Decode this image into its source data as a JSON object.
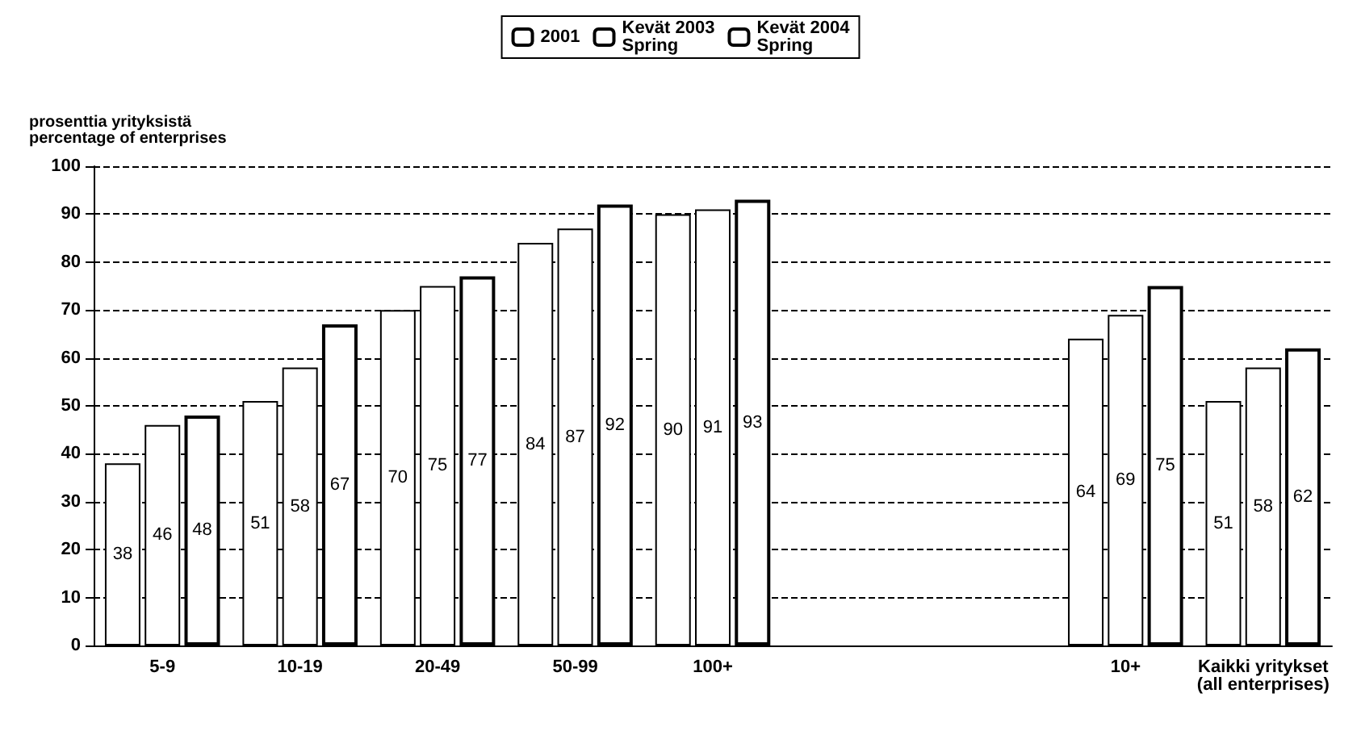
{
  "chart_data": {
    "type": "bar",
    "ylabel": "prosenttia yrityksistä\npercentage of enterprises",
    "categories": [
      "5-9",
      "10-19",
      "20-49",
      "50-99",
      "100+",
      null,
      null,
      "10+",
      "Kaikki yritykset\n(all enterprises)"
    ],
    "series": [
      {
        "name": "2001",
        "color": "#ffffff",
        "values": [
          38,
          51,
          70,
          84,
          90,
          null,
          null,
          64,
          51
        ]
      },
      {
        "name": "Kevät 2003\nSpring",
        "color": "#ffffff",
        "values": [
          46,
          58,
          75,
          87,
          91,
          null,
          null,
          69,
          58
        ]
      },
      {
        "name": "Kevät 2004\nSpring",
        "color": "#ffffff",
        "values": [
          48,
          67,
          77,
          92,
          93,
          null,
          null,
          75,
          62
        ]
      }
    ],
    "ylim": [
      0,
      100
    ],
    "yticks": [
      0,
      10,
      20,
      30,
      40,
      50,
      60,
      70,
      80,
      90,
      100
    ],
    "grid": true,
    "legend": "top",
    "data_labels": true
  }
}
